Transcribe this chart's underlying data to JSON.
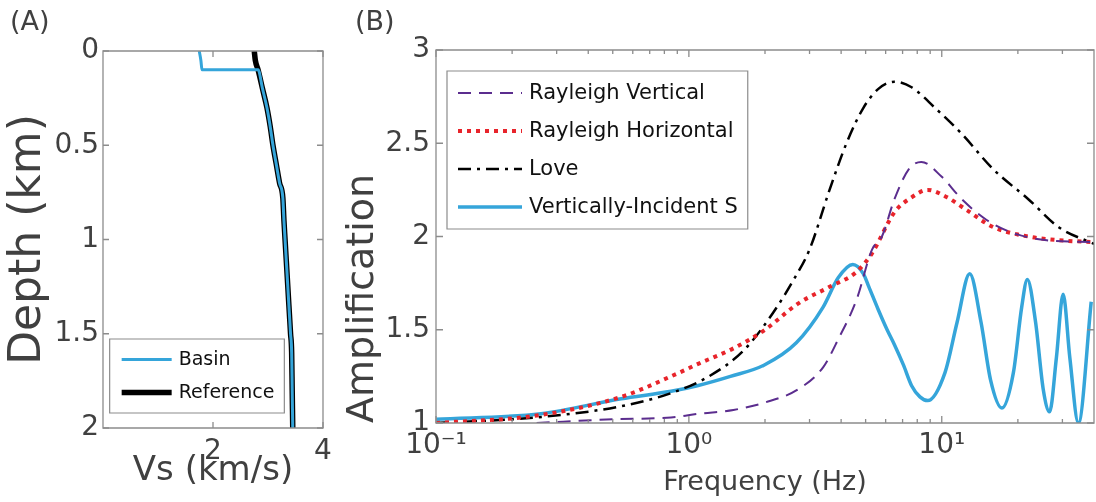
{
  "chart_data": [
    {
      "type": "line",
      "title": "(A)",
      "xlabel": "Vs (km/s)",
      "ylabel": "Depth (km)",
      "xlim": [
        0,
        4
      ],
      "xticks": [
        2,
        4
      ],
      "ylim": [
        2,
        0
      ],
      "yticks": [
        0,
        0.5,
        1,
        1.5,
        2
      ],
      "legend": "bottom",
      "series": [
        {
          "name": "Basin",
          "color": "#35a5da",
          "x": [
            1.75,
            1.78,
            1.8,
            2.82,
            2.9,
            2.98,
            3.04,
            3.09,
            3.15,
            3.21,
            3.27,
            3.29,
            3.31,
            3.35,
            3.38,
            3.41,
            3.43,
            3.44,
            3.45
          ],
          "values": [
            0,
            0.05,
            0.1,
            0.1,
            0.2,
            0.3,
            0.4,
            0.5,
            0.6,
            0.7,
            0.78,
            0.9,
            1.0,
            1.2,
            1.35,
            1.5,
            1.6,
            1.8,
            2
          ]
        },
        {
          "name": "Reference",
          "color": "#000000",
          "x": [
            2.75,
            2.77,
            2.82,
            2.9,
            2.98,
            3.04,
            3.09,
            3.15,
            3.21,
            3.27,
            3.29,
            3.31,
            3.35,
            3.38,
            3.41,
            3.43,
            3.44,
            3.45
          ],
          "values": [
            0,
            0.05,
            0.1,
            0.2,
            0.3,
            0.4,
            0.5,
            0.6,
            0.7,
            0.78,
            0.9,
            1.0,
            1.2,
            1.35,
            1.5,
            1.6,
            1.8,
            2
          ]
        }
      ]
    },
    {
      "type": "line",
      "title": "(B)",
      "xlabel": "Frequency (Hz)",
      "ylabel": "Amplification",
      "log": "x",
      "xlim": [
        0.1,
        40
      ],
      "xticks": [
        {
          "value": 0.1,
          "label": "10⁻¹"
        },
        {
          "value": 0.2,
          "label": null
        },
        {
          "value": 0.3,
          "label": null
        },
        {
          "value": 0.4,
          "label": null
        },
        {
          "value": 0.5,
          "label": null
        },
        {
          "value": 0.6,
          "label": null
        },
        {
          "value": 0.7,
          "label": null
        },
        {
          "value": 0.8,
          "label": null
        },
        {
          "value": 0.9,
          "label": null
        },
        {
          "value": 1,
          "label": "10⁰"
        },
        {
          "value": 2,
          "label": null
        },
        {
          "value": 3,
          "label": null
        },
        {
          "value": 4,
          "label": null
        },
        {
          "value": 5,
          "label": null
        },
        {
          "value": 6,
          "label": null
        },
        {
          "value": 7,
          "label": null
        },
        {
          "value": 8,
          "label": null
        },
        {
          "value": 9,
          "label": null
        },
        {
          "value": 10,
          "label": "10¹"
        },
        {
          "value": 20,
          "label": null
        },
        {
          "value": 30,
          "label": null
        }
      ],
      "ylim": [
        1,
        3
      ],
      "yticks": [
        1,
        1.5,
        2,
        2.5,
        3
      ],
      "legend": "top left",
      "series": [
        {
          "name": "Rayleigh Vertical",
          "color": "#5b2d8e",
          "line_style": "dashed",
          "x": [
            0.25,
            0.5,
            0.85,
            1.1,
            1.5,
            2,
            2.7,
            3.4,
            3.9,
            4.6,
            5.3,
            5.8,
            6.5,
            7.4,
            8.3,
            10,
            12,
            15,
            19,
            26,
            40
          ],
          "values": [
            1.0,
            1.02,
            1.03,
            1.05,
            1.07,
            1.11,
            1.18,
            1.3,
            1.45,
            1.66,
            1.93,
            2.0,
            2.2,
            2.36,
            2.4,
            2.32,
            2.2,
            2.09,
            2.02,
            1.98,
            1.97
          ]
        },
        {
          "name": "Rayleigh Horizontal",
          "color": "#e8242b",
          "line_style": "dotted",
          "x": [
            0.1,
            0.25,
            0.54,
            0.85,
            1.1,
            1.5,
            2,
            2.7,
            3.6,
            4.6,
            5.3,
            6.5,
            7.6,
            8.8,
            10.5,
            12.6,
            16,
            22,
            29,
            40
          ],
          "values": [
            1.0,
            1.04,
            1.14,
            1.25,
            1.32,
            1.4,
            1.5,
            1.64,
            1.73,
            1.81,
            1.91,
            2.13,
            2.21,
            2.25,
            2.21,
            2.14,
            2.05,
            2.0,
            1.98,
            1.97
          ]
        },
        {
          "name": "Love",
          "color": "#000000",
          "line_style": "dashdot",
          "x": [
            0.1,
            0.25,
            0.54,
            0.85,
            1.2,
            1.65,
            2.15,
            2.6,
            3.0,
            3.6,
            4.2,
            4.9,
            5.6,
            6.5,
            7.6,
            9.4,
            12,
            16,
            22,
            29,
            40
          ],
          "values": [
            1.0,
            1.03,
            1.09,
            1.16,
            1.25,
            1.39,
            1.59,
            1.77,
            1.93,
            2.25,
            2.5,
            2.69,
            2.79,
            2.83,
            2.8,
            2.69,
            2.55,
            2.36,
            2.2,
            2.05,
            1.96
          ]
        },
        {
          "name": "Vertically-Incident S",
          "color": "#35a5da",
          "x": [
            0.1,
            0.26,
            0.54,
            0.85,
            1.08,
            1.46,
            1.98,
            2.66,
            3.39,
            3.9,
            4.45,
            4.9,
            5.15,
            5.6,
            6.08,
            6.5,
            7.06,
            7.6,
            8.2,
            8.8,
            10.3,
            11.5,
            12.9,
            14.3,
            15.6,
            17.3,
            19.2,
            20.7,
            21.8,
            23.5,
            25.2,
            26.7,
            28.4,
            30.2,
            32.1,
            34.7,
            39
          ],
          "values": [
            1.02,
            1.05,
            1.13,
            1.17,
            1.2,
            1.25,
            1.31,
            1.43,
            1.62,
            1.78,
            1.85,
            1.8,
            1.73,
            1.61,
            1.5,
            1.42,
            1.31,
            1.2,
            1.14,
            1.12,
            1.27,
            1.54,
            1.8,
            1.54,
            1.23,
            1.08,
            1.27,
            1.62,
            1.77,
            1.54,
            1.18,
            1.06,
            1.35,
            1.69,
            1.35,
            1.0,
            1.65
          ]
        }
      ]
    }
  ]
}
